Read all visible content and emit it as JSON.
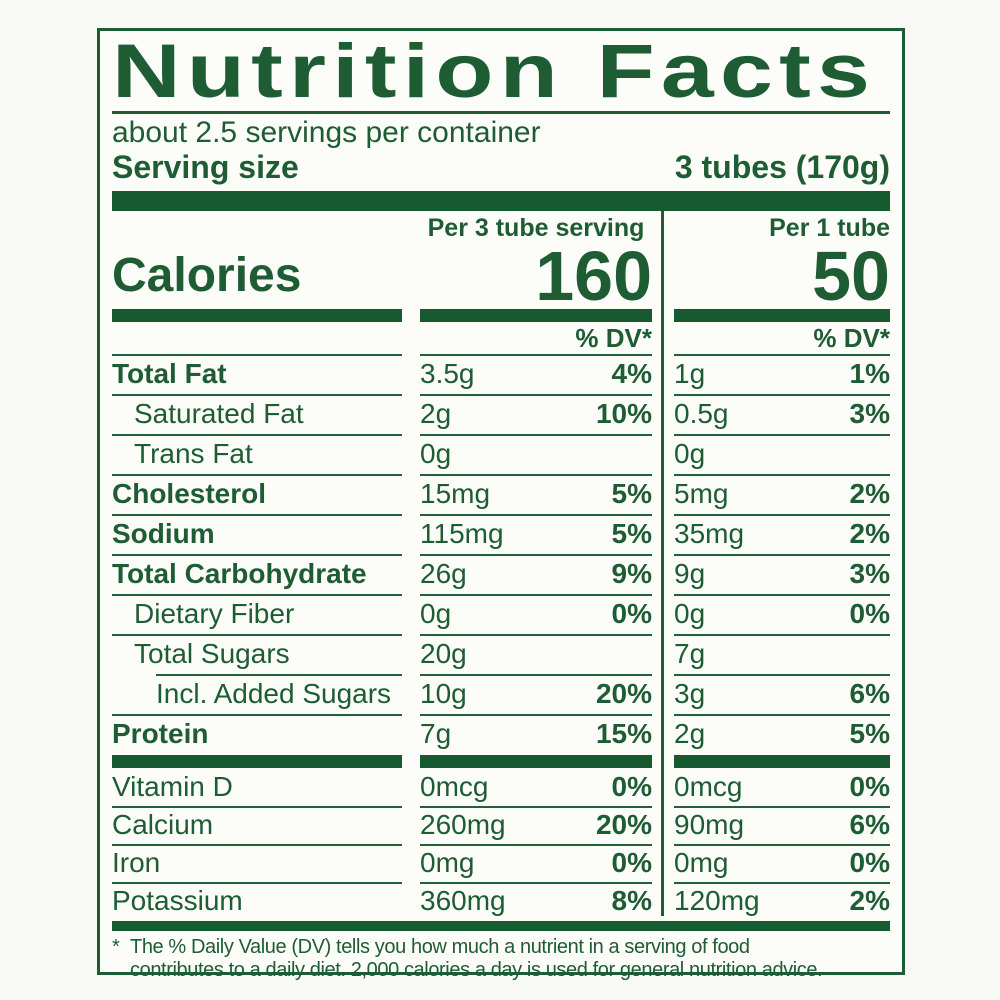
{
  "colors": {
    "green_text": "#1e5c34",
    "green_bar": "#175a30",
    "background": "#fcfcf9"
  },
  "header": {
    "title": "Nutrition Facts",
    "servings_per_container": "about 2.5 servings per container",
    "serving_size_label": "Serving size",
    "serving_size_value": "3 tubes (170g)"
  },
  "columns": {
    "col1_header": "Per 3 tube serving",
    "col2_header": "Per 1 tube",
    "dv_header": "% DV*"
  },
  "calories": {
    "label": "Calories",
    "col1_value": "160",
    "col2_value": "50"
  },
  "nutrients": [
    {
      "name": "Total Fat",
      "bold": true,
      "indent": 0,
      "rule": true,
      "rule_indent": false,
      "col1_amount": "3.5g",
      "col1_dv": "4%",
      "col2_amount": "1g",
      "col2_dv": "1%"
    },
    {
      "name": "Saturated Fat",
      "bold": false,
      "indent": 1,
      "rule": true,
      "rule_indent": false,
      "col1_amount": "2g",
      "col1_dv": "10%",
      "col2_amount": "0.5g",
      "col2_dv": "3%"
    },
    {
      "name": "Trans Fat",
      "bold": false,
      "indent": 1,
      "rule": true,
      "rule_indent": false,
      "col1_amount": "0g",
      "col1_dv": "",
      "col2_amount": "0g",
      "col2_dv": ""
    },
    {
      "name": "Cholesterol",
      "bold": true,
      "indent": 0,
      "rule": true,
      "rule_indent": false,
      "col1_amount": "15mg",
      "col1_dv": "5%",
      "col2_amount": "5mg",
      "col2_dv": "2%"
    },
    {
      "name": "Sodium",
      "bold": true,
      "indent": 0,
      "rule": true,
      "rule_indent": false,
      "col1_amount": "115mg",
      "col1_dv": "5%",
      "col2_amount": "35mg",
      "col2_dv": "2%"
    },
    {
      "name": "Total Carbohydrate",
      "bold": true,
      "indent": 0,
      "rule": true,
      "rule_indent": false,
      "col1_amount": "26g",
      "col1_dv": "9%",
      "col2_amount": "9g",
      "col2_dv": "3%"
    },
    {
      "name": "Dietary Fiber",
      "bold": false,
      "indent": 1,
      "rule": true,
      "rule_indent": false,
      "col1_amount": "0g",
      "col1_dv": "0%",
      "col2_amount": "0g",
      "col2_dv": "0%"
    },
    {
      "name": "Total Sugars",
      "bold": false,
      "indent": 1,
      "rule": true,
      "rule_indent": false,
      "col1_amount": "20g",
      "col1_dv": "",
      "col2_amount": "7g",
      "col2_dv": ""
    },
    {
      "name": "Incl. Added Sugars",
      "bold": false,
      "indent": 2,
      "rule": true,
      "rule_indent": true,
      "col1_amount": "10g",
      "col1_dv": "20%",
      "col2_amount": "3g",
      "col2_dv": "6%"
    },
    {
      "name": "Protein",
      "bold": true,
      "indent": 0,
      "rule": true,
      "rule_indent": false,
      "col1_amount": "7g",
      "col1_dv": "15%",
      "col2_amount": "2g",
      "col2_dv": "5%"
    }
  ],
  "minerals": [
    {
      "name": "Vitamin D",
      "bold": false,
      "indent": 0,
      "rule": false,
      "rule_indent": false,
      "col1_amount": "0mcg",
      "col1_dv": "0%",
      "col2_amount": "0mcg",
      "col2_dv": "0%"
    },
    {
      "name": "Calcium",
      "bold": false,
      "indent": 0,
      "rule": true,
      "rule_indent": false,
      "col1_amount": "260mg",
      "col1_dv": "20%",
      "col2_amount": "90mg",
      "col2_dv": "6%"
    },
    {
      "name": "Iron",
      "bold": false,
      "indent": 0,
      "rule": true,
      "rule_indent": false,
      "col1_amount": "0mg",
      "col1_dv": "0%",
      "col2_amount": "0mg",
      "col2_dv": "0%"
    },
    {
      "name": "Potassium",
      "bold": false,
      "indent": 0,
      "rule": true,
      "rule_indent": false,
      "col1_amount": "360mg",
      "col1_dv": "8%",
      "col2_amount": "120mg",
      "col2_dv": "2%"
    }
  ],
  "footnote": {
    "marker": "*",
    "lines": [
      "The % Daily Value (DV) tells you how much a nutrient in a serving of food",
      "contributes to a daily diet. 2,000 calories a day is used for general nutrition advice."
    ]
  }
}
